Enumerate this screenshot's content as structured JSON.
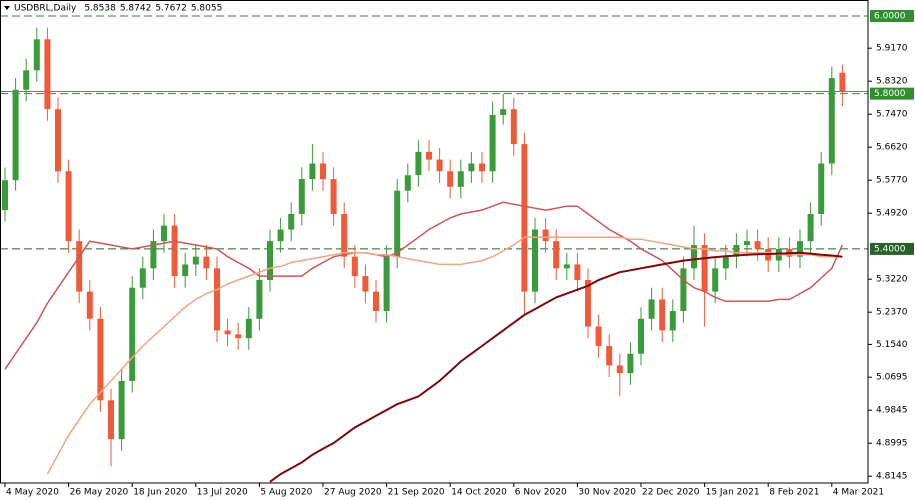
{
  "chart_data": {
    "type": "candlestick",
    "header": "USDBRL,Daily",
    "quote": [
      5.8538,
      5.8742,
      5.7672,
      5.8055
    ],
    "categories": [
      "4 May 2020",
      null,
      null,
      null,
      null,
      null,
      "26 May 2020",
      null,
      null,
      null,
      null,
      null,
      "18 Jun 2020",
      null,
      null,
      null,
      null,
      null,
      "13 Jul 2020",
      null,
      null,
      null,
      null,
      null,
      "5 Aug 2020",
      null,
      null,
      null,
      null,
      null,
      "27 Aug 2020",
      null,
      null,
      null,
      null,
      null,
      "21 Sep 2020",
      null,
      null,
      null,
      null,
      null,
      "14 Oct 2020",
      null,
      null,
      null,
      null,
      null,
      "6 Nov 2020",
      null,
      null,
      null,
      null,
      null,
      "30 Nov 2020",
      null,
      null,
      null,
      null,
      null,
      "22 Dec 2020",
      null,
      null,
      null,
      null,
      null,
      "15 Jan 2021",
      null,
      null,
      null,
      null,
      null,
      "8 Feb 2021",
      null,
      null,
      null,
      null,
      null,
      "4 Mar 2021",
      null
    ],
    "open": [
      5.5,
      5.577,
      5.81,
      5.86,
      5.94,
      5.76,
      5.6,
      5.42,
      5.29,
      5.22,
      5.01,
      4.91,
      5.06,
      5.3,
      5.35,
      5.42,
      5.46,
      5.33,
      5.36,
      5.38,
      5.35,
      5.19,
      5.18,
      5.17,
      5.22,
      5.32,
      5.42,
      5.45,
      5.49,
      5.58,
      5.62,
      5.58,
      5.49,
      5.38,
      5.33,
      5.29,
      5.24,
      5.38,
      5.55,
      5.59,
      5.65,
      5.63,
      5.6,
      5.56,
      5.6,
      5.62,
      5.6,
      5.745,
      5.76,
      5.67,
      5.29,
      5.45,
      5.42,
      5.35,
      5.36,
      5.32,
      5.2,
      5.15,
      5.1,
      5.08,
      5.13,
      5.22,
      5.27,
      5.19,
      5.24,
      5.35,
      5.41,
      5.29,
      5.35,
      5.38,
      5.41,
      5.42,
      5.4,
      5.37,
      5.4,
      5.38,
      5.42,
      5.49,
      5.62,
      5.8538
    ],
    "high": [
      5.61,
      5.84,
      5.89,
      5.97,
      5.97,
      5.79,
      5.63,
      5.45,
      5.32,
      5.25,
      5.04,
      5.09,
      5.33,
      5.38,
      5.45,
      5.49,
      5.49,
      5.39,
      5.41,
      5.41,
      5.38,
      5.22,
      5.21,
      5.25,
      5.35,
      5.45,
      5.48,
      5.52,
      5.61,
      5.67,
      5.65,
      5.61,
      5.52,
      5.41,
      5.36,
      5.32,
      5.41,
      5.58,
      5.62,
      5.68,
      5.68,
      5.66,
      5.63,
      5.63,
      5.65,
      5.65,
      5.78,
      5.8,
      5.79,
      5.7,
      5.48,
      5.48,
      5.45,
      5.39,
      5.39,
      5.35,
      5.23,
      5.18,
      5.13,
      5.16,
      5.25,
      5.3,
      5.3,
      5.27,
      5.38,
      5.46,
      5.44,
      5.38,
      5.41,
      5.44,
      5.45,
      5.45,
      5.43,
      5.43,
      5.43,
      5.45,
      5.52,
      5.65,
      5.87,
      5.8742
    ],
    "low": [
      5.47,
      5.55,
      5.78,
      5.83,
      5.73,
      5.57,
      5.39,
      5.26,
      5.19,
      4.98,
      4.84,
      4.88,
      5.03,
      5.27,
      5.32,
      5.39,
      5.3,
      5.3,
      5.33,
      5.32,
      5.16,
      5.15,
      5.14,
      5.14,
      5.19,
      5.29,
      5.39,
      5.42,
      5.46,
      5.55,
      5.55,
      5.46,
      5.35,
      5.3,
      5.26,
      5.21,
      5.21,
      5.35,
      5.52,
      5.56,
      5.6,
      5.57,
      5.53,
      5.53,
      5.57,
      5.57,
      5.57,
      5.72,
      5.64,
      5.23,
      5.26,
      5.39,
      5.32,
      5.32,
      5.29,
      5.17,
      5.12,
      5.07,
      5.02,
      5.05,
      5.1,
      5.19,
      5.16,
      5.16,
      5.21,
      5.32,
      5.2,
      5.26,
      5.32,
      5.35,
      5.38,
      5.37,
      5.34,
      5.34,
      5.35,
      5.35,
      5.39,
      5.46,
      5.59,
      5.7672
    ],
    "close": [
      5.577,
      5.81,
      5.86,
      5.94,
      5.76,
      5.6,
      5.42,
      5.29,
      5.22,
      5.01,
      4.91,
      5.06,
      5.3,
      5.35,
      5.42,
      5.46,
      5.33,
      5.36,
      5.38,
      5.35,
      5.19,
      5.18,
      5.17,
      5.22,
      5.32,
      5.42,
      5.45,
      5.49,
      5.58,
      5.62,
      5.58,
      5.49,
      5.38,
      5.33,
      5.29,
      5.24,
      5.38,
      5.55,
      5.59,
      5.65,
      5.63,
      5.6,
      5.56,
      5.6,
      5.62,
      5.6,
      5.745,
      5.76,
      5.67,
      5.29,
      5.45,
      5.42,
      5.35,
      5.36,
      5.32,
      5.2,
      5.15,
      5.1,
      5.08,
      5.13,
      5.22,
      5.27,
      5.19,
      5.24,
      5.35,
      5.41,
      5.29,
      5.35,
      5.38,
      5.41,
      5.42,
      5.4,
      5.37,
      5.4,
      5.38,
      5.42,
      5.49,
      5.62,
      5.84,
      5.8055
    ],
    "up_color": "#3b9b3b",
    "down_color": "#ef5a3a",
    "series": [
      {
        "color": "#c9585a",
        "values": [
          5.09,
          5.13,
          5.17,
          5.21,
          5.26,
          5.3,
          5.34,
          5.38,
          5.42,
          5.415,
          5.41,
          5.405,
          5.4,
          5.405,
          5.41,
          5.415,
          5.42,
          5.415,
          5.41,
          5.405,
          5.4,
          5.38,
          5.365,
          5.35,
          5.33,
          5.33,
          5.33,
          5.33,
          5.33,
          5.35,
          5.365,
          5.38,
          5.385,
          5.39,
          5.39,
          5.385,
          5.38,
          5.39,
          5.41,
          5.43,
          5.45,
          5.465,
          5.48,
          5.49,
          5.495,
          5.5,
          5.51,
          5.52,
          5.515,
          5.51,
          5.505,
          5.5,
          5.505,
          5.51,
          5.51,
          5.49,
          5.47,
          5.45,
          5.435,
          5.42,
          5.4,
          5.385,
          5.37,
          5.345,
          5.32,
          5.3,
          5.29,
          5.275,
          5.265,
          5.265,
          5.265,
          5.265,
          5.265,
          5.27,
          5.27,
          5.285,
          5.3,
          5.325,
          5.35,
          5.41
        ]
      },
      {
        "color": "#f5a383",
        "values": [
          null,
          null,
          null,
          null,
          4.82,
          4.87,
          4.92,
          4.96,
          5.0,
          5.03,
          5.06,
          5.09,
          5.12,
          5.15,
          5.175,
          5.2,
          5.225,
          5.25,
          5.27,
          5.285,
          5.295,
          5.31,
          5.32,
          5.33,
          5.34,
          5.35,
          5.355,
          5.365,
          5.37,
          5.375,
          5.38,
          5.385,
          5.39,
          5.39,
          5.39,
          5.385,
          5.385,
          5.38,
          5.375,
          5.37,
          5.365,
          5.36,
          5.36,
          5.36,
          5.365,
          5.37,
          5.38,
          5.395,
          5.41,
          5.43,
          5.43,
          5.43,
          5.43,
          5.43,
          5.43,
          5.43,
          5.43,
          5.43,
          5.43,
          5.425,
          5.425,
          5.42,
          5.415,
          5.41,
          5.405,
          5.4,
          5.4,
          5.395,
          5.395,
          5.39,
          5.39,
          5.39,
          5.39,
          5.385,
          5.385,
          5.385,
          5.385,
          5.38,
          5.38,
          5.38
        ]
      },
      {
        "color": "#7a0a0a",
        "values": [
          null,
          null,
          null,
          null,
          null,
          null,
          null,
          null,
          null,
          null,
          null,
          null,
          null,
          null,
          null,
          null,
          null,
          null,
          null,
          null,
          null,
          null,
          null,
          null,
          null,
          4.8,
          4.82,
          4.835,
          4.85,
          4.87,
          4.885,
          4.9,
          4.92,
          4.94,
          4.955,
          4.97,
          4.985,
          5.0,
          5.01,
          5.02,
          5.04,
          5.06,
          5.085,
          5.11,
          5.13,
          5.15,
          5.17,
          5.19,
          5.21,
          5.23,
          5.245,
          5.26,
          5.275,
          5.285,
          5.295,
          5.305,
          5.32,
          5.33,
          5.34,
          5.345,
          5.35,
          5.355,
          5.36,
          5.365,
          5.37,
          5.373,
          5.376,
          5.379,
          5.381,
          5.383,
          5.385,
          5.386,
          5.387,
          5.388,
          5.389,
          5.39,
          5.388,
          5.385,
          5.383,
          5.38
        ]
      }
    ],
    "levels": [
      {
        "value": 6.0,
        "label": "6.0000",
        "color": "#2f8f2f"
      },
      {
        "value": 5.8,
        "label": "5.8000",
        "color": "#2f8f2f"
      },
      {
        "value": 5.4,
        "label": "5.4000",
        "color": "#26622a"
      }
    ],
    "ylim": [
      4.797,
      6.0412
    ],
    "yticks": [
      {
        "value": 5.917,
        "label": "5.9170"
      },
      {
        "value": 5.832,
        "label": "5.8320"
      },
      {
        "value": 5.747,
        "label": "5.7470"
      },
      {
        "value": 5.662,
        "label": "5.6620"
      },
      {
        "value": 5.577,
        "label": "5.5770"
      },
      {
        "value": 5.492,
        "label": "5.4920"
      },
      {
        "value": 5.322,
        "label": "5.3220"
      },
      {
        "value": 5.237,
        "label": "5.2370"
      },
      {
        "value": 5.154,
        "label": "5.1540"
      },
      {
        "value": 5.0695,
        "label": "5.0695"
      },
      {
        "value": 4.9845,
        "label": "4.9845"
      },
      {
        "value": 4.8995,
        "label": "4.8995"
      },
      {
        "value": 4.8145,
        "label": "4.8145"
      }
    ]
  }
}
